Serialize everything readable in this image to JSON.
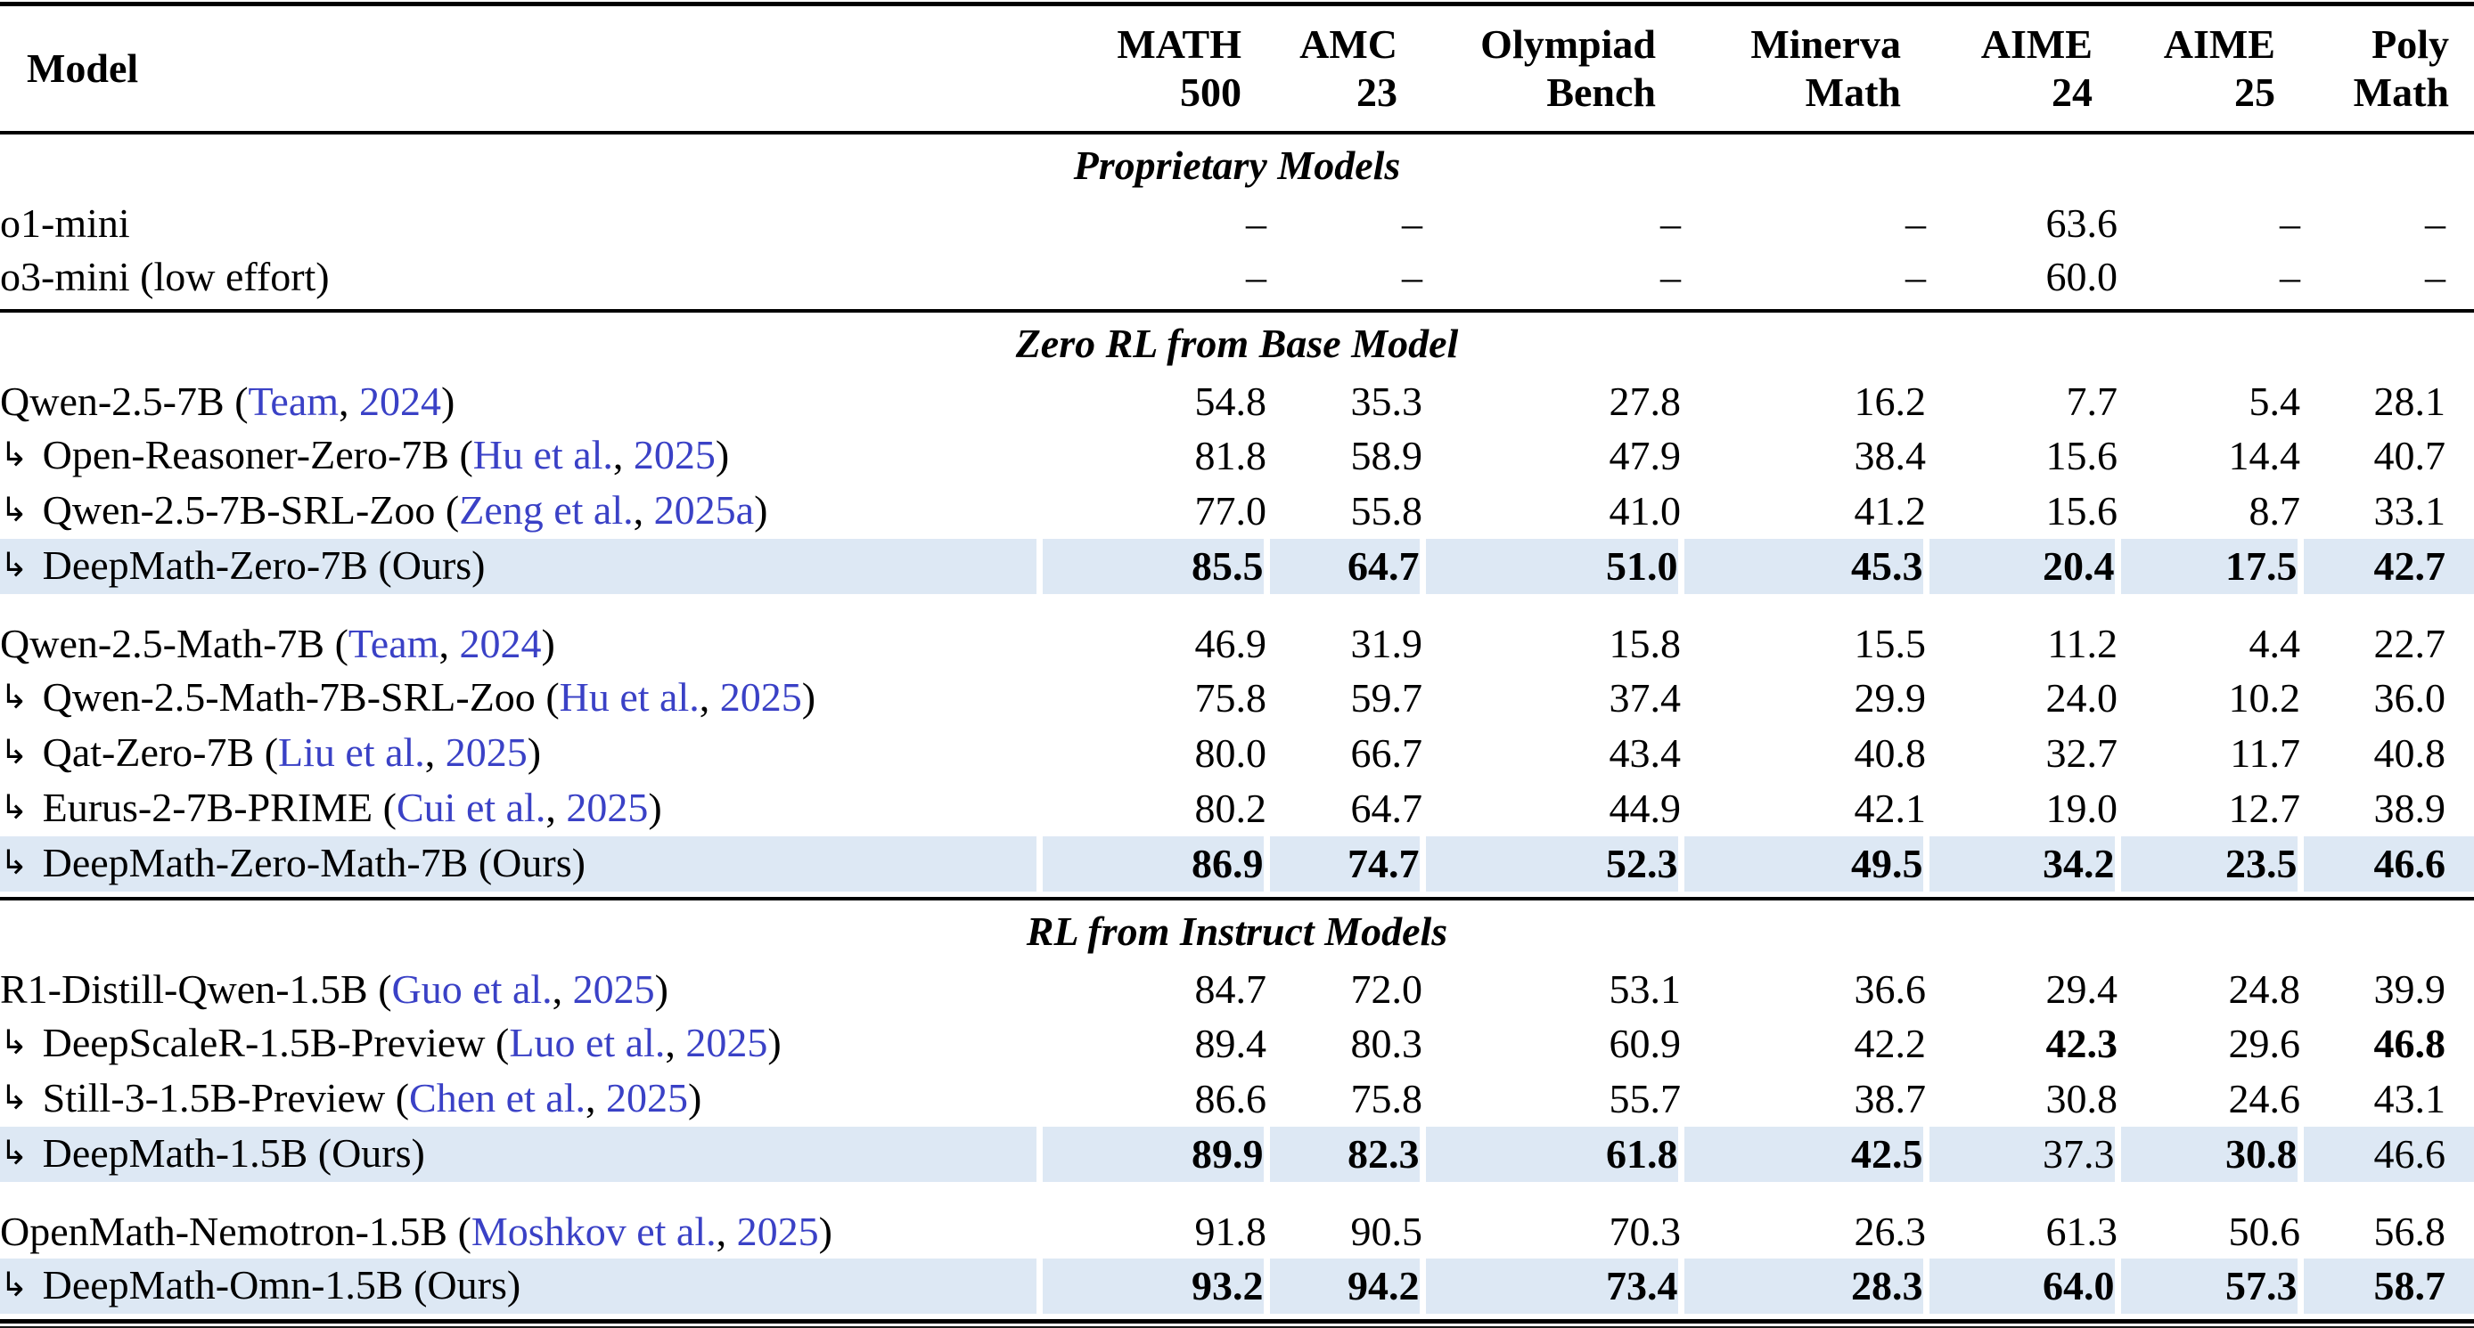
{
  "colors": {
    "citation_blue": "#3a41c6",
    "highlight_row": "#dde8f4",
    "rule_black": "#000000"
  },
  "icons": {
    "branch_arrow": "↳"
  },
  "table": {
    "header": {
      "model": "Model",
      "metrics": [
        [
          "MATH",
          "500"
        ],
        [
          "AMC",
          "23"
        ],
        [
          "Olympiad",
          "Bench"
        ],
        [
          "Minerva",
          "Math"
        ],
        [
          "AIME",
          "24"
        ],
        [
          "AIME",
          "25"
        ],
        [
          "Poly",
          "Math"
        ]
      ]
    },
    "sections": [
      {
        "title": "Proprietary Models",
        "groups": [
          [
            {
              "name": "o1-mini",
              "arrow": false,
              "cite": null,
              "ours": false,
              "highlight": false,
              "values": [
                "–",
                "–",
                "–",
                "–",
                "63.6",
                "–",
                "–"
              ],
              "bold": [
                false,
                false,
                false,
                false,
                false,
                false,
                false
              ]
            },
            {
              "name": "o3-mini (low effort)",
              "arrow": false,
              "cite": null,
              "ours": false,
              "highlight": false,
              "values": [
                "–",
                "–",
                "–",
                "–",
                "60.0",
                "–",
                "–"
              ],
              "bold": [
                false,
                false,
                false,
                false,
                false,
                false,
                false
              ]
            }
          ]
        ]
      },
      {
        "title": "Zero RL from Base Model",
        "groups": [
          [
            {
              "name": "Qwen-2.5-7B",
              "arrow": false,
              "cite": {
                "author": "Team",
                "year": "2024"
              },
              "ours": false,
              "highlight": false,
              "values": [
                "54.8",
                "35.3",
                "27.8",
                "16.2",
                "7.7",
                "5.4",
                "28.1"
              ],
              "bold": [
                false,
                false,
                false,
                false,
                false,
                false,
                false
              ]
            },
            {
              "name": "Open-Reasoner-Zero-7B",
              "arrow": true,
              "cite": {
                "author": "Hu et al.",
                "year": "2025"
              },
              "ours": false,
              "highlight": false,
              "values": [
                "81.8",
                "58.9",
                "47.9",
                "38.4",
                "15.6",
                "14.4",
                "40.7"
              ],
              "bold": [
                false,
                false,
                false,
                false,
                false,
                false,
                false
              ]
            },
            {
              "name": "Qwen-2.5-7B-SRL-Zoo",
              "arrow": true,
              "cite": {
                "author": "Zeng et al.",
                "year": "2025a"
              },
              "ours": false,
              "highlight": false,
              "values": [
                "77.0",
                "55.8",
                "41.0",
                "41.2",
                "15.6",
                "8.7",
                "33.1"
              ],
              "bold": [
                false,
                false,
                false,
                false,
                false,
                false,
                false
              ]
            },
            {
              "name": "DeepMath-Zero-7B",
              "arrow": true,
              "cite": null,
              "ours": true,
              "highlight": true,
              "values": [
                "85.5",
                "64.7",
                "51.0",
                "45.3",
                "20.4",
                "17.5",
                "42.7"
              ],
              "bold": [
                true,
                true,
                true,
                true,
                true,
                true,
                true
              ]
            }
          ],
          [
            {
              "name": "Qwen-2.5-Math-7B",
              "arrow": false,
              "cite": {
                "author": "Team",
                "year": "2024"
              },
              "ours": false,
              "highlight": false,
              "values": [
                "46.9",
                "31.9",
                "15.8",
                "15.5",
                "11.2",
                "4.4",
                "22.7"
              ],
              "bold": [
                false,
                false,
                false,
                false,
                false,
                false,
                false
              ]
            },
            {
              "name": "Qwen-2.5-Math-7B-SRL-Zoo",
              "arrow": true,
              "cite": {
                "author": "Hu et al.",
                "year": "2025"
              },
              "ours": false,
              "highlight": false,
              "values": [
                "75.8",
                "59.7",
                "37.4",
                "29.9",
                "24.0",
                "10.2",
                "36.0"
              ],
              "bold": [
                false,
                false,
                false,
                false,
                false,
                false,
                false
              ]
            },
            {
              "name": "Qat-Zero-7B",
              "arrow": true,
              "cite": {
                "author": "Liu et al.",
                "year": "2025"
              },
              "ours": false,
              "highlight": false,
              "values": [
                "80.0",
                "66.7",
                "43.4",
                "40.8",
                "32.7",
                "11.7",
                "40.8"
              ],
              "bold": [
                false,
                false,
                false,
                false,
                false,
                false,
                false
              ]
            },
            {
              "name": "Eurus-2-7B-PRIME",
              "arrow": true,
              "cite": {
                "author": "Cui et al.",
                "year": "2025"
              },
              "ours": false,
              "highlight": false,
              "values": [
                "80.2",
                "64.7",
                "44.9",
                "42.1",
                "19.0",
                "12.7",
                "38.9"
              ],
              "bold": [
                false,
                false,
                false,
                false,
                false,
                false,
                false
              ]
            },
            {
              "name": "DeepMath-Zero-Math-7B",
              "arrow": true,
              "cite": null,
              "ours": true,
              "highlight": true,
              "values": [
                "86.9",
                "74.7",
                "52.3",
                "49.5",
                "34.2",
                "23.5",
                "46.6"
              ],
              "bold": [
                true,
                true,
                true,
                true,
                true,
                true,
                true
              ]
            }
          ]
        ]
      },
      {
        "title": "RL from Instruct Models",
        "groups": [
          [
            {
              "name": "R1-Distill-Qwen-1.5B",
              "arrow": false,
              "cite": {
                "author": "Guo et al.",
                "year": "2025"
              },
              "ours": false,
              "highlight": false,
              "values": [
                "84.7",
                "72.0",
                "53.1",
                "36.6",
                "29.4",
                "24.8",
                "39.9"
              ],
              "bold": [
                false,
                false,
                false,
                false,
                false,
                false,
                false
              ]
            },
            {
              "name": "DeepScaleR-1.5B-Preview",
              "arrow": true,
              "cite": {
                "author": "Luo et al.",
                "year": "2025"
              },
              "ours": false,
              "highlight": false,
              "values": [
                "89.4",
                "80.3",
                "60.9",
                "42.2",
                "42.3",
                "29.6",
                "46.8"
              ],
              "bold": [
                false,
                false,
                false,
                false,
                true,
                false,
                true
              ]
            },
            {
              "name": "Still-3-1.5B-Preview",
              "arrow": true,
              "cite": {
                "author": "Chen et al.",
                "year": "2025"
              },
              "ours": false,
              "highlight": false,
              "values": [
                "86.6",
                "75.8",
                "55.7",
                "38.7",
                "30.8",
                "24.6",
                "43.1"
              ],
              "bold": [
                false,
                false,
                false,
                false,
                false,
                false,
                false
              ]
            },
            {
              "name": "DeepMath-1.5B",
              "arrow": true,
              "cite": null,
              "ours": true,
              "highlight": true,
              "values": [
                "89.9",
                "82.3",
                "61.8",
                "42.5",
                "37.3",
                "30.8",
                "46.6"
              ],
              "bold": [
                true,
                true,
                true,
                true,
                false,
                true,
                false
              ]
            }
          ],
          [
            {
              "name": "OpenMath-Nemotron-1.5B",
              "arrow": false,
              "cite": {
                "author": "Moshkov et al.",
                "year": "2025"
              },
              "ours": false,
              "highlight": false,
              "values": [
                "91.8",
                "90.5",
                "70.3",
                "26.3",
                "61.3",
                "50.6",
                "56.8"
              ],
              "bold": [
                false,
                false,
                false,
                false,
                false,
                false,
                false
              ]
            },
            {
              "name": "DeepMath-Omn-1.5B",
              "arrow": true,
              "cite": null,
              "ours": true,
              "highlight": true,
              "values": [
                "93.2",
                "94.2",
                "73.4",
                "28.3",
                "64.0",
                "57.3",
                "58.7"
              ],
              "bold": [
                true,
                true,
                true,
                true,
                true,
                true,
                true
              ]
            }
          ]
        ]
      }
    ],
    "ours_suffix": "(Ours)"
  }
}
